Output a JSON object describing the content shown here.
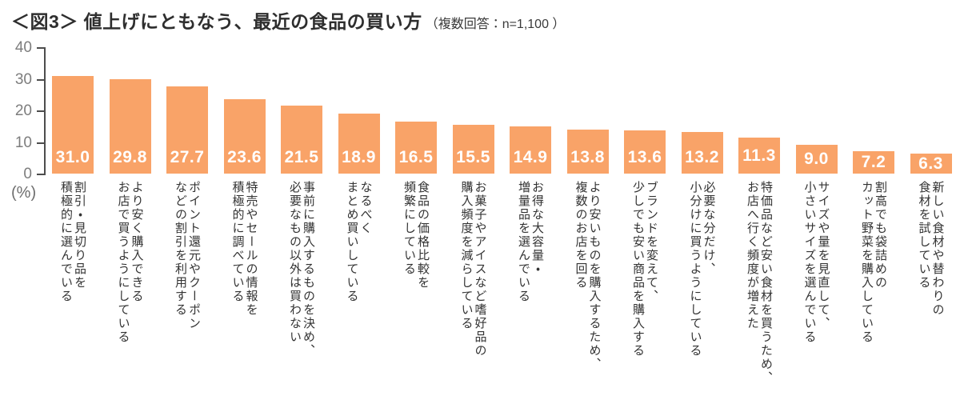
{
  "header": {
    "title": "＜図3＞ 値上げにともなう、最近の食品の買い方",
    "note": "（複数回答：n=1,100 ）"
  },
  "chart_data": {
    "type": "bar",
    "title": "値上げにともなう、最近の食品の買い方",
    "subtitle": "複数回答：n=1,100",
    "unit_label": "(%)",
    "ylim": [
      0,
      40
    ],
    "yticks": [
      40,
      30,
      20,
      10,
      0
    ],
    "grid": false,
    "legend": "none",
    "bar_color": "#F9A368",
    "value_label_color": "#FFFFFF",
    "axis_color": "#4d4d4d",
    "tick_label_color": "#7d7d7d",
    "category_label_color": "#333333",
    "categories": [
      "割引・見切り品を\n積極的に選んでいる",
      "より安く購入できる\nお店で買うようにしている",
      "ポイント還元やクーポン\nなどの割引を利用する",
      "特売やセールの情報を\n積極的に調べている",
      "事前に購入するものを決め、\n必要なもの以外は買わない",
      "なるべく\nまとめ買いしている",
      "食品の価格比較を\n頻繁にしている",
      "お菓子やアイスなど嗜好品の\n購入頻度を減らしている",
      "お得な大容量・\n増量品を選んでいる",
      "より安いものを購入するため、\n複数のお店を回る",
      "ブランドを変えて、\n少しでも安い商品を購入する",
      "必要な分だけ、\n小分けに買うようにしている",
      "特価品など安い食材を買うため、\nお店へ行く頻度が増えた",
      "サイズや量を見直して、\n小さいサイズを選んでいる",
      "割高でも袋詰めの\nカット野菜を購入している",
      "新しい食材や替わりの\n食材を試している"
    ],
    "values": [
      31.0,
      29.8,
      27.7,
      23.6,
      21.5,
      18.9,
      16.5,
      15.5,
      14.9,
      13.8,
      13.6,
      13.2,
      11.3,
      9.0,
      7.2,
      6.3
    ]
  }
}
